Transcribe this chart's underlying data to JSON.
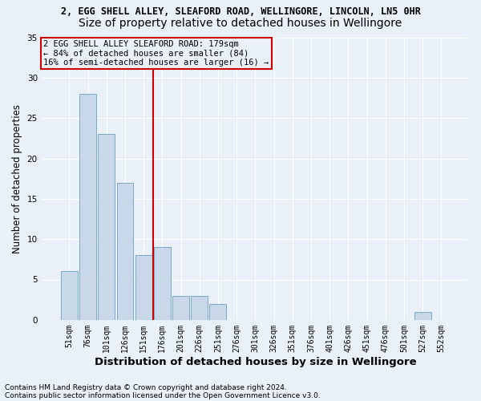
{
  "title1": "2, EGG SHELL ALLEY, SLEAFORD ROAD, WELLINGORE, LINCOLN, LN5 0HR",
  "title2": "Size of property relative to detached houses in Wellingore",
  "xlabel": "Distribution of detached houses by size in Wellingore",
  "ylabel": "Number of detached properties",
  "categories": [
    "51sqm",
    "76sqm",
    "101sqm",
    "126sqm",
    "151sqm",
    "176sqm",
    "201sqm",
    "226sqm",
    "251sqm",
    "276sqm",
    "301sqm",
    "326sqm",
    "351sqm",
    "376sqm",
    "401sqm",
    "426sqm",
    "451sqm",
    "476sqm",
    "501sqm",
    "527sqm",
    "552sqm"
  ],
  "values": [
    6,
    28,
    23,
    17,
    8,
    9,
    3,
    3,
    2,
    0,
    0,
    0,
    0,
    0,
    0,
    0,
    0,
    0,
    0,
    1,
    0
  ],
  "bar_color": "#c8d8e8",
  "bar_edge_color": "#7aaac8",
  "vline_bin_index": 5,
  "annotation_line1": "2 EGG SHELL ALLEY SLEAFORD ROAD: 179sqm",
  "annotation_line2": "← 84% of detached houses are smaller (84)",
  "annotation_line3": "16% of semi-detached houses are larger (16) →",
  "ylim": [
    0,
    35
  ],
  "yticks": [
    0,
    5,
    10,
    15,
    20,
    25,
    30,
    35
  ],
  "footnote1": "Contains HM Land Registry data © Crown copyright and database right 2024.",
  "footnote2": "Contains public sector information licensed under the Open Government Licence v3.0.",
  "bg_color": "#eaf0f8",
  "grid_color": "#ffffff",
  "vline_color": "#cc0000",
  "annotation_box_color": "#cc0000",
  "title1_fontsize": 8.5,
  "title2_fontsize": 10,
  "tick_fontsize": 7,
  "ylabel_fontsize": 8.5,
  "xlabel_fontsize": 9.5,
  "footnote_fontsize": 6.5,
  "annotation_fontsize": 7.5
}
